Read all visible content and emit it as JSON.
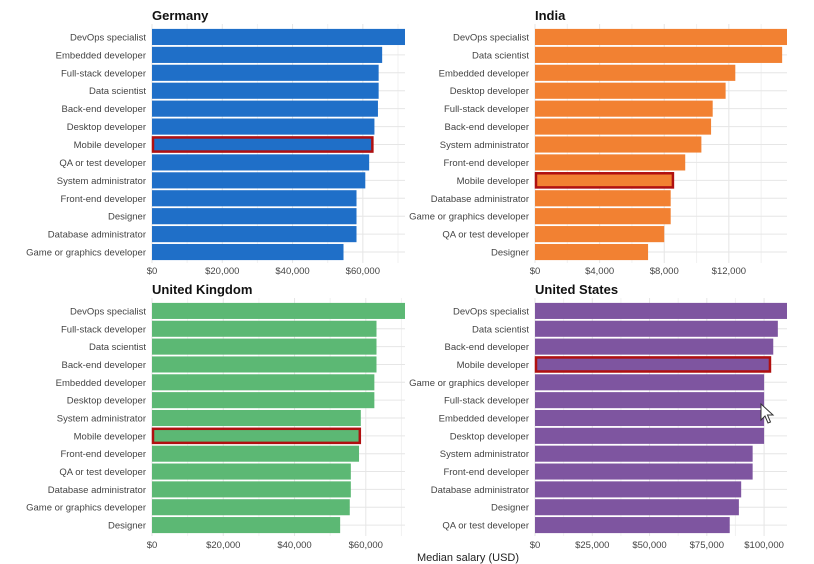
{
  "chart_data": [
    {
      "type": "bar",
      "orientation": "horizontal",
      "title": "Germany",
      "color": "#1f6fc8",
      "highlight": "Mobile developer",
      "categories": [
        "DevOps specialist",
        "Embedded developer",
        "Full-stack developer",
        "Data scientist",
        "Back-end developer",
        "Desktop developer",
        "Mobile developer",
        "QA or test developer",
        "System administrator",
        "Front-end developer",
        "Designer",
        "Database administrator",
        "Game or graphics developer"
      ],
      "values": [
        72000,
        65500,
        64500,
        64500,
        64300,
        63300,
        63000,
        61800,
        60700,
        58200,
        58200,
        58200,
        54500
      ],
      "xlim": [
        0,
        72000
      ],
      "ticks": [
        0,
        20000,
        40000,
        60000
      ],
      "tick_labels": [
        "$0",
        "$20,000",
        "$40,000",
        "$60,000"
      ]
    },
    {
      "type": "bar",
      "orientation": "horizontal",
      "title": "India",
      "color": "#f28132",
      "highlight": "Mobile developer",
      "categories": [
        "DevOps specialist",
        "Data scientist",
        "Embedded developer",
        "Desktop developer",
        "Full-stack developer",
        "Back-end developer",
        "System administrator",
        "Front-end developer",
        "Mobile developer",
        "Database administrator",
        "Game or graphics developer",
        "QA or test developer",
        "Designer"
      ],
      "values": [
        15600,
        15300,
        12400,
        11800,
        11000,
        10900,
        10300,
        9300,
        8600,
        8400,
        8400,
        8000,
        7000
      ],
      "xlim": [
        0,
        15600
      ],
      "ticks": [
        0,
        4000,
        8000,
        12000
      ],
      "tick_labels": [
        "$0",
        "$4,000",
        "$8,000",
        "$12,000"
      ]
    },
    {
      "type": "bar",
      "orientation": "horizontal",
      "title": "United Kingdom",
      "color": "#5cb874",
      "highlight": "Mobile developer",
      "categories": [
        "DevOps specialist",
        "Full-stack developer",
        "Data scientist",
        "Back-end developer",
        "Embedded developer",
        "Desktop developer",
        "System administrator",
        "Mobile developer",
        "Front-end developer",
        "QA or test developer",
        "Database administrator",
        "Game or graphics developer",
        "Designer"
      ],
      "values": [
        71000,
        63000,
        63000,
        63000,
        62400,
        62400,
        58600,
        58600,
        58100,
        55800,
        55800,
        55500,
        52800
      ],
      "xlim": [
        0,
        71000
      ],
      "ticks": [
        0,
        20000,
        40000,
        60000
      ],
      "tick_labels": [
        "$0",
        "$20,000",
        "$40,000",
        "$60,000"
      ]
    },
    {
      "type": "bar",
      "orientation": "horizontal",
      "title": "United States",
      "color": "#7e55a0",
      "highlight": "Mobile developer",
      "categories": [
        "DevOps specialist",
        "Data scientist",
        "Back-end developer",
        "Mobile developer",
        "Game or graphics developer",
        "Full-stack developer",
        "Embedded developer",
        "Desktop developer",
        "System administrator",
        "Front-end developer",
        "Database administrator",
        "Designer",
        "QA or test developer"
      ],
      "values": [
        110000,
        106000,
        104000,
        103000,
        100000,
        100000,
        100000,
        100000,
        95000,
        95000,
        90000,
        89000,
        85000
      ],
      "xlim": [
        0,
        110000
      ],
      "ticks": [
        0,
        25000,
        50000,
        75000,
        100000
      ],
      "tick_labels": [
        "$0",
        "$25,000",
        "$50,000",
        "$75,000",
        "$100,000"
      ]
    }
  ],
  "xlabel": "Median salary (USD)",
  "highlight_color": "#b01010",
  "grid_color": "#e6e6e6"
}
